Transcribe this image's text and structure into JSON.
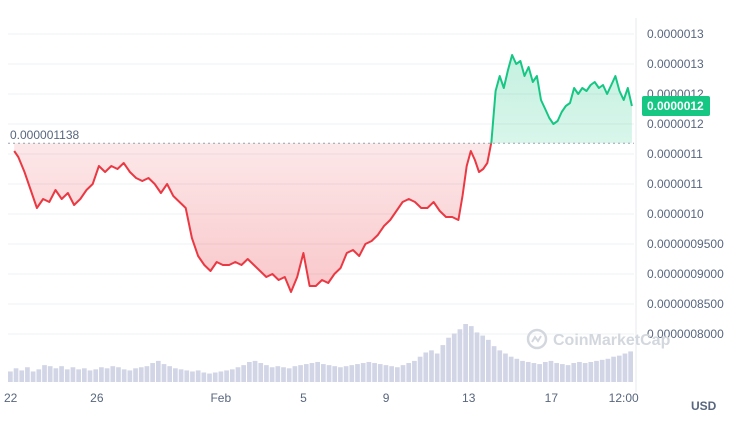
{
  "chart_data": {
    "type": "area",
    "y_ticks": [
      "0.0000013",
      "0.0000013",
      "0.0000012",
      "0.0000012",
      "0.0000011",
      "0.0000011",
      "0.0000010",
      "0.0000009500",
      "0.0000009000",
      "0.0000008500",
      "0.0000008000"
    ],
    "y_tick_values": [
      1.32e-06,
      1.27e-06,
      1.22e-06,
      1.17e-06,
      1.12e-06,
      1.07e-06,
      1.02e-06,
      9.7e-07,
      9.2e-07,
      8.7e-07,
      8.2e-07
    ],
    "ylim": [
      7.9e-07,
      1.34e-06
    ],
    "x_ticks": [
      "22",
      "26",
      "Feb",
      "5",
      "9",
      "13",
      "17",
      "12:00"
    ],
    "x_tick_values": [
      0,
      4,
      10,
      14,
      18,
      22,
      26,
      29.5
    ],
    "xlim": [
      -0.3,
      30
    ],
    "reference_price": 1.138e-06,
    "reference_label": "0.000001138",
    "current_price_label": "0.0000012",
    "unit_label": "USD",
    "watermark": "CoinMarketCap",
    "colors": {
      "down": "#ea3943",
      "up": "#16c784",
      "volume": "#d1d5e6",
      "grid": "#eef0f4",
      "badge": "#16c784"
    },
    "series": [
      {
        "x": [
          0,
          0.2,
          0.5,
          0.8,
          1.1,
          1.4,
          1.7,
          2.0,
          2.3,
          2.6,
          2.9,
          3.2,
          3.5,
          3.8,
          4.1,
          4.4,
          4.7,
          5.0,
          5.3,
          5.6,
          5.9,
          6.2,
          6.5,
          6.8,
          7.1,
          7.4,
          7.7,
          8.0,
          8.3,
          8.6,
          8.9,
          9.2,
          9.5,
          9.8,
          10.1,
          10.4,
          10.7,
          11.0,
          11.3,
          11.6,
          11.9,
          12.2,
          12.5,
          12.8,
          13.1,
          13.4,
          13.7,
          14.0,
          14.3,
          14.6,
          14.9,
          15.2,
          15.5,
          15.8,
          16.1,
          16.4,
          16.7,
          17.0,
          17.3,
          17.6,
          17.9,
          18.2,
          18.5,
          18.8,
          19.1,
          19.4,
          19.7,
          20.0,
          20.3,
          20.6,
          20.9,
          21.2,
          21.5,
          21.7,
          21.9,
          22.1,
          22.3,
          22.5,
          22.7,
          22.9,
          23.1,
          23.3,
          23.5,
          23.7,
          23.9,
          24.1,
          24.3,
          24.5,
          24.7,
          24.9,
          25.1,
          25.3,
          25.5,
          25.7,
          25.9,
          26.1,
          26.3,
          26.5,
          26.7,
          26.9,
          27.1,
          27.3,
          27.5,
          27.7,
          27.9,
          28.1,
          28.3,
          28.5,
          28.7,
          28.9,
          29.1,
          29.3,
          29.5,
          29.7,
          29.9
        ],
        "values": [
          1.125e-06,
          1.115e-06,
          1.09e-06,
          1.06e-06,
          1.03e-06,
          1.045e-06,
          1.04e-06,
          1.06e-06,
          1.045e-06,
          1.055e-06,
          1.035e-06,
          1.045e-06,
          1.06e-06,
          1.07e-06,
          1.1e-06,
          1.09e-06,
          1.1e-06,
          1.095e-06,
          1.105e-06,
          1.09e-06,
          1.08e-06,
          1.075e-06,
          1.08e-06,
          1.07e-06,
          1.055e-06,
          1.07e-06,
          1.05e-06,
          1.04e-06,
          1.03e-06,
          9.8e-07,
          9.5e-07,
          9.35e-07,
          9.25e-07,
          9.4e-07,
          9.35e-07,
          9.35e-07,
          9.4e-07,
          9.35e-07,
          9.45e-07,
          9.35e-07,
          9.25e-07,
          9.15e-07,
          9.2e-07,
          9.1e-07,
          9.15e-07,
          8.9e-07,
          9.15e-07,
          9.55e-07,
          9e-07,
          9e-07,
          9.1e-07,
          9.05e-07,
          9.2e-07,
          9.3e-07,
          9.55e-07,
          9.6e-07,
          9.5e-07,
          9.7e-07,
          9.75e-07,
          9.85e-07,
          1e-06,
          1.01e-06,
          1.025e-06,
          1.04e-06,
          1.045e-06,
          1.04e-06,
          1.03e-06,
          1.03e-06,
          1.04e-06,
          1.025e-06,
          1.015e-06,
          1.015e-06,
          1.01e-06,
          1.05e-06,
          1.1e-06,
          1.125e-06,
          1.11e-06,
          1.09e-06,
          1.095e-06,
          1.105e-06,
          1.14e-06,
          1.225e-06,
          1.25e-06,
          1.23e-06,
          1.26e-06,
          1.285e-06,
          1.27e-06,
          1.275e-06,
          1.25e-06,
          1.265e-06,
          1.24e-06,
          1.25e-06,
          1.21e-06,
          1.195e-06,
          1.18e-06,
          1.17e-06,
          1.175e-06,
          1.19e-06,
          1.2e-06,
          1.205e-06,
          1.23e-06,
          1.22e-06,
          1.23e-06,
          1.225e-06,
          1.235e-06,
          1.24e-06,
          1.23e-06,
          1.235e-06,
          1.22e-06,
          1.235e-06,
          1.25e-06,
          1.225e-06,
          1.21e-06,
          1.23e-06,
          1.2e-06
        ]
      }
    ],
    "volume": [
      10,
      13,
      11,
      14,
      10,
      12,
      16,
      15,
      13,
      15,
      12,
      14,
      12,
      13,
      11,
      12,
      14,
      13,
      15,
      14,
      12,
      11,
      13,
      14,
      15,
      18,
      20,
      17,
      15,
      13,
      12,
      11,
      10,
      11,
      9,
      8,
      9,
      10,
      11,
      12,
      14,
      16,
      19,
      20,
      18,
      16,
      14,
      15,
      14,
      13,
      15,
      16,
      17,
      18,
      19,
      17,
      16,
      15,
      14,
      15,
      16,
      17,
      18,
      19,
      18,
      17,
      16,
      15,
      14,
      16,
      18,
      20,
      24,
      28,
      30,
      27,
      35,
      42,
      46,
      50,
      55,
      53,
      47,
      44,
      40,
      34,
      30,
      27,
      24,
      22,
      20,
      19,
      18,
      17,
      19,
      20,
      18,
      17,
      16,
      18,
      19,
      18,
      19,
      20,
      21,
      22,
      24,
      25,
      27,
      29
    ]
  }
}
